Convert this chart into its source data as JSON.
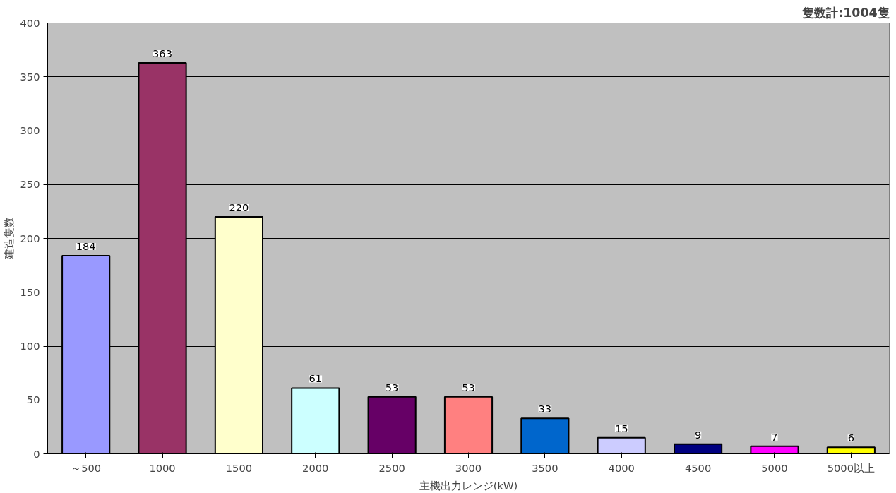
{
  "chart_data": {
    "type": "bar",
    "annotations": [
      "隻数計:1004隻"
    ],
    "xlabel": "主機出力レンジ(kW)",
    "ylabel": "建造隻数",
    "categories": [
      "～500",
      "1000",
      "1500",
      "2000",
      "2500",
      "3000",
      "3500",
      "4000",
      "4500",
      "5000",
      "5000以上"
    ],
    "values": [
      184,
      363,
      220,
      61,
      53,
      53,
      33,
      15,
      9,
      7,
      6
    ],
    "colors": [
      "#9999ff",
      "#993366",
      "#ffffcc",
      "#ccffff",
      "#660066",
      "#ff8080",
      "#0066cc",
      "#ccccff",
      "#000080",
      "#ff00ff",
      "#ffff00"
    ],
    "ylim": [
      0,
      400
    ],
    "yticks": [
      0,
      50,
      100,
      150,
      200,
      250,
      300,
      350,
      400
    ],
    "grid": "y",
    "data_labels": true
  }
}
